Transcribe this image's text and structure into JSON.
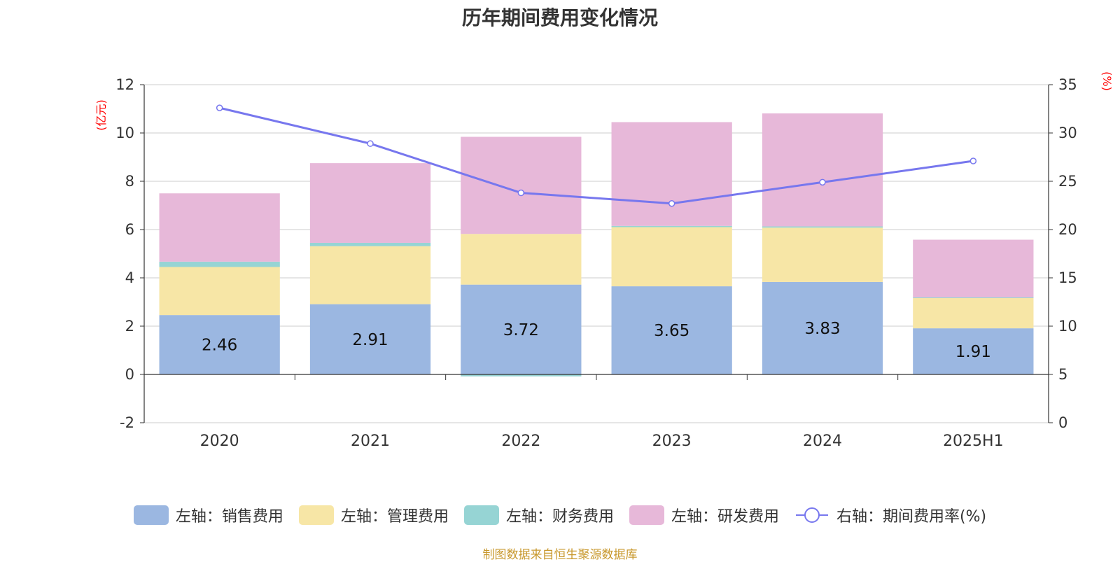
{
  "chart_data": {
    "type": "bar",
    "title": "历年期间费用变化情况",
    "categories": [
      "2020",
      "2021",
      "2022",
      "2023",
      "2024",
      "2025H1"
    ],
    "left_axis": {
      "unit": "(亿元)",
      "ylim": [
        -2,
        12
      ],
      "ticks": [
        -2,
        0,
        2,
        4,
        6,
        8,
        10,
        12
      ]
    },
    "right_axis": {
      "unit": "(%)",
      "ylim": [
        0,
        35
      ],
      "ticks": [
        0,
        5,
        10,
        15,
        20,
        25,
        30,
        35
      ]
    },
    "grid": true,
    "legend_position": "bottom",
    "stacked": true,
    "series": [
      {
        "name": "左轴：销售费用",
        "type": "bar",
        "axis": "left",
        "color": "#9bb7e1",
        "values": [
          2.46,
          2.91,
          3.72,
          3.65,
          3.83,
          1.91
        ],
        "labels": [
          "2.46",
          "2.91",
          "3.72",
          "3.65",
          "3.83",
          "1.91"
        ]
      },
      {
        "name": "左轴：管理费用",
        "type": "bar",
        "axis": "left",
        "color": "#f7e6a6",
        "values": [
          1.99,
          2.4,
          2.1,
          2.45,
          2.25,
          1.25
        ]
      },
      {
        "name": "左轴：财务费用",
        "type": "bar",
        "axis": "left",
        "color": "#96d4d4",
        "values": [
          0.22,
          0.14,
          -0.08,
          0.05,
          0.05,
          0.03
        ]
      },
      {
        "name": "左轴：研发费用",
        "type": "bar",
        "axis": "left",
        "color": "#e7b8d9",
        "values": [
          2.83,
          3.3,
          4.02,
          4.3,
          4.68,
          2.39
        ]
      },
      {
        "name": "右轴：期间费用率(%)",
        "type": "line",
        "axis": "right",
        "color": "#7777ee",
        "values": [
          32.6,
          28.9,
          23.8,
          22.7,
          24.9,
          27.1
        ]
      }
    ]
  },
  "source_note": "制图数据来自恒生聚源数据库"
}
